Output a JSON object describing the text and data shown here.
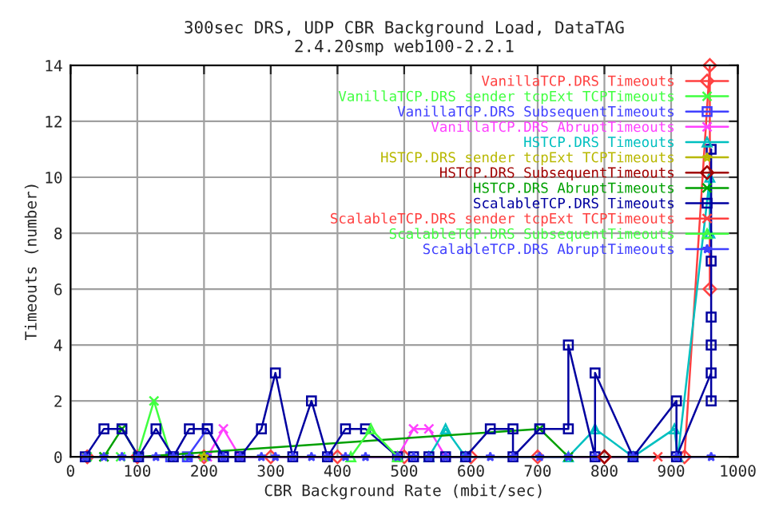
{
  "chart_data": {
    "type": "line",
    "title": "300sec DRS, UDP CBR Background Load, DataTAG\n2.4.20smp web100-2.2.1",
    "xlabel": "CBR Background Rate (mbit/sec)",
    "ylabel": "Timeouts (number)",
    "xlim": [
      0,
      1000
    ],
    "xticks": [
      0,
      100,
      200,
      300,
      400,
      500,
      600,
      700,
      800,
      900,
      1000
    ],
    "ylim": [
      0,
      14
    ],
    "yticks": [
      0,
      2,
      4,
      6,
      8,
      10,
      12,
      14
    ],
    "grid": true,
    "legend": "top right",
    "series": [
      {
        "name": "VanillaTCP.DRS Timeouts",
        "color": "#ff4040",
        "marker": "diamond",
        "x": [
          25,
          100,
          200,
          300,
          400,
          500,
          600,
          700,
          800,
          920,
          958,
          958
        ],
        "values": [
          0,
          0,
          0,
          0,
          0,
          0,
          0,
          0,
          0,
          0,
          14,
          6
        ]
      },
      {
        "name": "VanillaTCP.DRS sender tcpExt TCPTimeouts",
        "color": "#40ff40",
        "marker": "cross",
        "x": [
          25,
          50,
          75,
          100,
          125,
          150,
          175,
          200
        ],
        "values": [
          0,
          0,
          0,
          0,
          2,
          0,
          0,
          0
        ]
      },
      {
        "name": "VanillaTCP.DRS SubsequentTimeouts",
        "color": "#4040ff",
        "marker": "square",
        "x": [
          150,
          175,
          205,
          229,
          254
        ],
        "values": [
          0,
          0,
          1,
          0,
          0
        ]
      },
      {
        "name": "VanillaTCP.DRS AbruptTimeouts",
        "color": "#ff40ff",
        "marker": "cross",
        "x": [
          205,
          229,
          254,
          490,
          514,
          537,
          562
        ],
        "values": [
          0,
          1,
          0,
          0,
          1,
          1,
          0
        ]
      },
      {
        "name": "HSTCP.DRS Timeouts",
        "color": "#00c0c0",
        "marker": "triangle",
        "x": [
          537,
          562,
          592,
          746,
          786,
          843,
          905,
          910,
          958,
          958
        ],
        "values": [
          0,
          1,
          0,
          0,
          1,
          0,
          1,
          0,
          10,
          8
        ]
      },
      {
        "name": "HSTCP.DRS sender tcpExt TCPTimeouts",
        "color": "#b8b800",
        "marker": "star",
        "x": [
          200
        ],
        "values": [
          0
        ]
      },
      {
        "name": "HSTCP.DRS SubsequentTimeouts",
        "color": "#a00000",
        "marker": "diamond",
        "x": [
          800
        ],
        "values": [
          0
        ]
      },
      {
        "name": "HSTCP.DRS AbruptTimeouts",
        "color": "#00a000",
        "marker": "cross",
        "x": [
          50,
          77,
          102,
          703,
          746
        ],
        "values": [
          0,
          1,
          0,
          1,
          0
        ]
      },
      {
        "name": "ScalableTCP.DRS Timeouts",
        "color": "#0000a0",
        "marker": "square",
        "x": [
          22,
          50,
          77,
          102,
          128,
          154,
          178,
          205,
          229,
          254,
          286,
          307,
          333,
          361,
          385,
          412,
          442,
          490,
          514,
          537,
          562,
          592,
          629,
          663,
          663,
          703,
          746,
          746,
          786,
          786,
          843,
          908,
          908,
          960,
          960,
          960,
          960,
          960,
          960
        ],
        "values": [
          0,
          1,
          1,
          0,
          1,
          0,
          1,
          1,
          0,
          0,
          1,
          3,
          0,
          2,
          0,
          1,
          1,
          0,
          0,
          0,
          0,
          0,
          1,
          1,
          0,
          1,
          1,
          4,
          0,
          3,
          0,
          2,
          0,
          3,
          2,
          4,
          5,
          7,
          11
        ]
      },
      {
        "name": "ScalableTCP.DRS sender tcpExt TCPTimeouts",
        "color": "#ff4040",
        "marker": "cross",
        "x": [
          880
        ],
        "values": [
          0
        ]
      },
      {
        "name": "ScalableTCP.DRS SubsequentTimeouts",
        "color": "#40ff40",
        "marker": "triangle",
        "x": [
          420,
          450,
          490
        ],
        "values": [
          0,
          1,
          0
        ]
      },
      {
        "name": "ScalableTCP.DRS AbruptTimeouts",
        "color": "#4040ff",
        "marker": "star",
        "x": [
          22,
          50,
          77,
          102,
          128,
          154,
          178,
          205,
          229,
          254,
          286,
          307,
          333,
          361,
          385,
          412,
          442,
          490,
          514,
          537,
          562,
          592,
          629,
          663,
          703,
          746,
          786,
          843,
          908,
          960
        ],
        "values": [
          0,
          0,
          0,
          0,
          0,
          0,
          0,
          0,
          0,
          0,
          0,
          0,
          0,
          0,
          0,
          0,
          0,
          0,
          0,
          0,
          0,
          0,
          0,
          0,
          0,
          0,
          0,
          0,
          0,
          0
        ]
      }
    ]
  }
}
